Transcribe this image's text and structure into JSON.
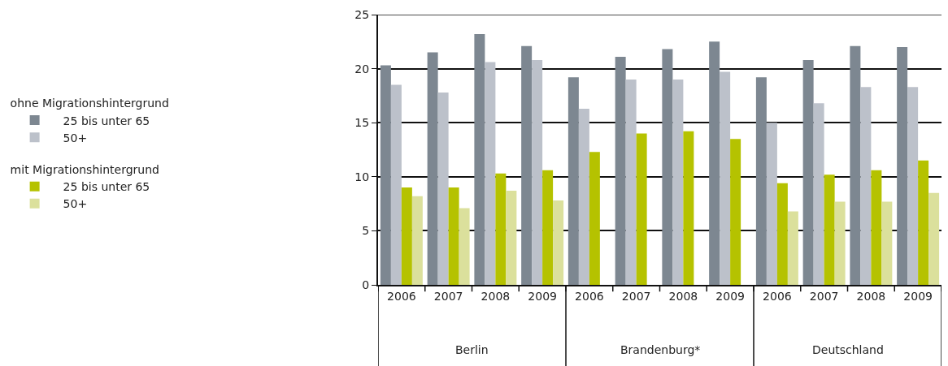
{
  "chart_data": {
    "type": "bar",
    "categories": [
      "2006",
      "2007",
      "2008",
      "2009",
      "2006",
      "2007",
      "2008",
      "2009",
      "2006",
      "2007",
      "2008",
      "2009"
    ],
    "series": [
      {
        "name": "25 bis unter 65",
        "color": "#7d8791",
        "values": [
          20.3,
          21.5,
          23.2,
          22.1,
          19.2,
          21.1,
          21.8,
          22.5,
          19.2,
          20.8,
          22.1,
          22.0
        ]
      },
      {
        "name": "50+",
        "color": "#bcc1ca",
        "values": [
          18.5,
          17.8,
          20.6,
          20.8,
          16.3,
          19.0,
          19.0,
          19.7,
          15.0,
          16.8,
          18.3,
          18.3
        ]
      },
      {
        "name": "25 bis unter 65",
        "color": "#b5c200",
        "values": [
          9.0,
          9.0,
          10.3,
          10.6,
          12.3,
          14.0,
          14.2,
          13.5,
          9.4,
          10.2,
          10.6,
          11.5
        ]
      },
      {
        "name": "50+",
        "color": "#dbe09c",
        "values": [
          8.2,
          7.1,
          8.7,
          7.8,
          null,
          null,
          null,
          null,
          6.8,
          7.7,
          7.7,
          8.5
        ]
      }
    ],
    "legend_title": [
      "ohne Migrationshintergrund",
      "mit Migrationshintergrund"
    ],
    "annotations": [
      "Berlin",
      "Brandenburg*",
      "Deutschland"
    ],
    "ylim": [
      0,
      25
    ],
    "yticks": [
      0,
      5,
      10,
      15,
      20,
      25
    ],
    "grid": "y",
    "legend": "left"
  }
}
